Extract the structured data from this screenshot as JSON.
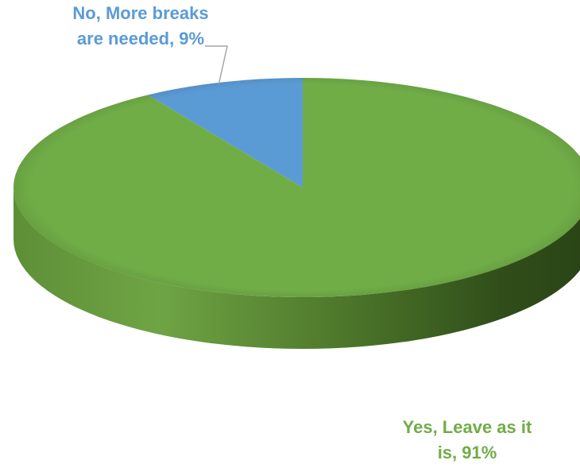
{
  "chart_data": {
    "type": "pie",
    "style": "3d",
    "slices": [
      {
        "label": "No, More breaks are needed",
        "value": 9,
        "value_text": "9%",
        "color": "#5b9bd5",
        "label_lines": [
          "No, More breaks",
          "are needed, 9%"
        ]
      },
      {
        "label": "Yes, Leave as it is",
        "value": 91,
        "value_text": "91%",
        "color": "#70ad47",
        "label_lines": [
          "Yes, Leave as it",
          "is, 91%"
        ]
      }
    ],
    "legend": "none",
    "start_angle_deg": 0,
    "direction": "counterclockwise"
  }
}
